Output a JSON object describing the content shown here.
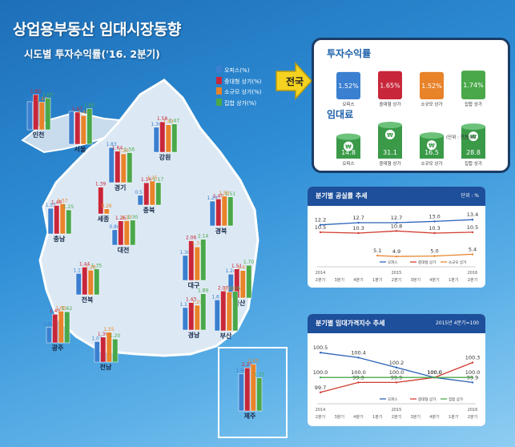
{
  "header": {
    "title": "상업용부동산 임대시장동향",
    "subtitle": "시도별 투자수익률('16. 2분기)"
  },
  "colors": {
    "office": "#3b7fd0",
    "mid_shop": "#c8263a",
    "small_shop": "#e8832a",
    "collective_shop": "#4aa84a"
  },
  "legend": {
    "items": [
      "오피스(%)",
      "중대형 상가(%)",
      "소규모 상가(%)",
      "집합 상가(%)"
    ]
  },
  "national": {
    "label": "전국",
    "roi_title": "투자수익률",
    "roi": [
      {
        "value": "1.52%",
        "label": "오피스"
      },
      {
        "value": "1.65%",
        "label": "중대형 상가"
      },
      {
        "value": "1.52%",
        "label": "소규모 상가"
      },
      {
        "value": "1.74%",
        "label": "집합 상가"
      }
    ],
    "rent_title": "임대료",
    "rent_unit": "(단위 : 천원/㎡)",
    "rent": [
      {
        "value": "14.8",
        "label": "오피스"
      },
      {
        "value": "31.1",
        "label": "중대형 상가"
      },
      {
        "value": "16.5",
        "label": "소규모 상가"
      },
      {
        "value": "28.8",
        "label": "집합 상가"
      }
    ]
  },
  "chart_data": [
    {
      "type": "bar",
      "series_names": [
        "오피스(%)",
        "중대형 상가(%)",
        "소규모 상가(%)",
        "집합 상가(%)"
      ],
      "regions": [
        {
          "name": "인천",
          "values": [
            1.46,
            1.83,
            1.44,
            1.65
          ]
        },
        {
          "name": "서울",
          "values": [
            1.71,
            1.67,
            1.49,
            1.85
          ]
        },
        {
          "name": "강원",
          "values": [
            1.3,
            1.58,
            1.43,
            1.47
          ]
        },
        {
          "name": "경기",
          "values": [
            1.83,
            1.64,
            1.5,
            1.56
          ]
        },
        {
          "name": "충북",
          "values": [
            0.51,
            1.16,
            1.25,
            1.17
          ]
        },
        {
          "name": "세종",
          "values": [
            null,
            1.39,
            0.26,
            null
          ]
        },
        {
          "name": "경북",
          "values": [
            1.29,
            1.4,
            1.55,
            1.51
          ]
        },
        {
          "name": "충남",
          "values": [
            1.33,
            1.48,
            1.57,
            1.25
          ]
        },
        {
          "name": "대전",
          "values": [
            0.8,
            1.26,
            1.27,
            1.3
          ]
        },
        {
          "name": "대구",
          "values": [
            1.3,
            2.06,
            1.74,
            2.14
          ]
        },
        {
          "name": "전북",
          "values": [
            1.11,
            1.44,
            1.28,
            1.35
          ]
        },
        {
          "name": "울산",
          "values": [
            1.24,
            1.51,
            1.43,
            1.7
          ]
        },
        {
          "name": "경남",
          "values": [
            1.17,
            1.43,
            1.29,
            1.89
          ]
        },
        {
          "name": "광주",
          "values": [
            0.82,
            1.49,
            1.65,
            1.62
          ]
        },
        {
          "name": "부산",
          "values": [
            1.61,
            2.07,
            2.02,
            2.05
          ]
        },
        {
          "name": "전남",
          "values": [
            1.07,
            1.3,
            1.55,
            1.2
          ]
        },
        {
          "name": "제주",
          "values": [
            1.94,
            2.24,
            2.43,
            1.72
          ]
        }
      ]
    },
    {
      "type": "line",
      "title": "분기별 공실률 추세",
      "unit": "단위 : %",
      "x": [
        "2분기",
        "3분기",
        "4분기",
        "1분기",
        "2분기",
        "3분기",
        "4분기",
        "1분기",
        "2분기"
      ],
      "year_labels": [
        "2014",
        "2015",
        "2016"
      ],
      "series": [
        {
          "name": "오피스",
          "color": "#2b62b8",
          "values": [
            12.2,
            null,
            12.7,
            null,
            12.7,
            null,
            13.0,
            null,
            13.4
          ]
        },
        {
          "name": "중대형 상가",
          "color": "#d03b2f",
          "values": [
            10.5,
            null,
            10.3,
            null,
            10.8,
            null,
            10.3,
            null,
            10.5
          ]
        },
        {
          "name": "소규모 상가",
          "color": "#e8832a",
          "values": [
            null,
            null,
            null,
            5.1,
            4.9,
            null,
            5.0,
            null,
            5.4
          ]
        }
      ]
    },
    {
      "type": "line",
      "title": "분기별 임대가격지수 추세",
      "unit": "2015년 4분기=100",
      "x": [
        "2분기",
        "3분기",
        "4분기",
        "1분기",
        "2분기",
        "3분기",
        "4분기",
        "1분기",
        "2분기"
      ],
      "year_labels": [
        "2014",
        "2015",
        "2016"
      ],
      "series": [
        {
          "name": "오피스",
          "color": "#2b62b8",
          "values": [
            100.5,
            null,
            100.4,
            null,
            100.2,
            null,
            100.0,
            null,
            99.9
          ]
        },
        {
          "name": "중대형 상가",
          "color": "#d03b2f",
          "values": [
            99.7,
            null,
            99.9,
            null,
            99.9,
            null,
            100.0,
            null,
            100.3
          ]
        },
        {
          "name": "집합 상가",
          "color": "#4aa84a",
          "values": [
            100.0,
            null,
            100.0,
            null,
            100.0,
            null,
            100.0,
            null,
            100.0
          ]
        }
      ]
    }
  ]
}
